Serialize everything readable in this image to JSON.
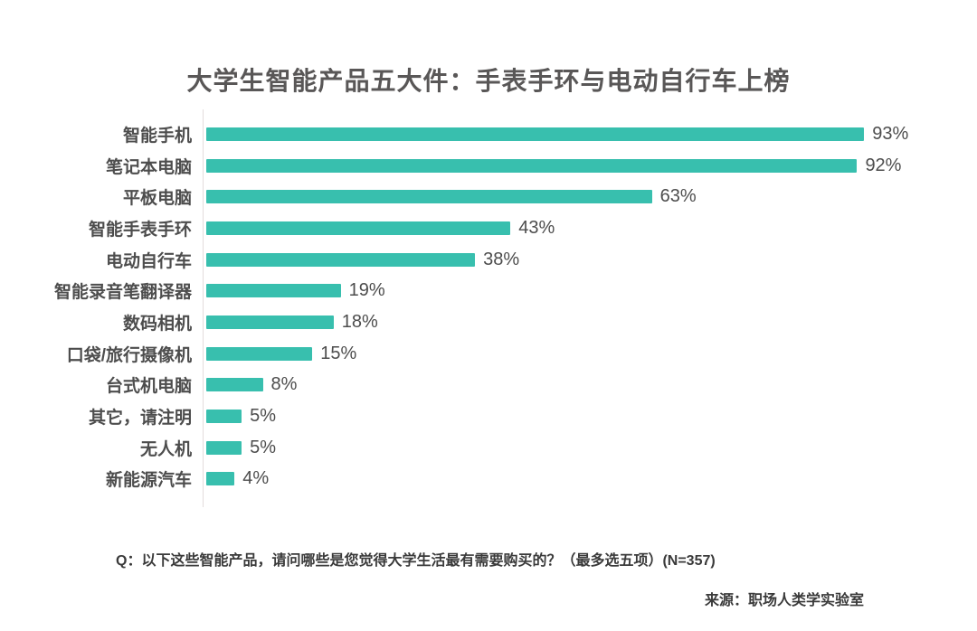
{
  "chart_data": {
    "type": "bar",
    "orientation": "horizontal",
    "title": "大学生智能产品五大件：手表手环与电动自行车上榜",
    "categories": [
      "智能手机",
      "笔记本电脑",
      "平板电脑",
      "智能手表手环",
      "电动自行车",
      "智能录音笔翻译器",
      "数码相机",
      "口袋/旅行摄像机",
      "台式机电脑",
      "其它，请注明",
      "无人机",
      "新能源汽车"
    ],
    "values": [
      93,
      92,
      63,
      43,
      38,
      19,
      18,
      15,
      8,
      5,
      5,
      4
    ],
    "value_labels": [
      "93%",
      "92%",
      "63%",
      "43%",
      "38%",
      "19%",
      "18%",
      "15%",
      "8%",
      "5%",
      "5%",
      "4%"
    ],
    "value_suffix": "%",
    "xlabel": "",
    "ylabel": "",
    "xlim": [
      0,
      100
    ],
    "grid": false,
    "legend": "none",
    "bar_color": "#38BFAE"
  },
  "footer": {
    "question": "Q：以下这些智能产品，请问哪些是您觉得大学生活最有需要购买的？（最多选五项）(N=357)",
    "source": "来源：职场人类学实验室"
  },
  "colors": {
    "bar": "#38BFAE",
    "title_text": "#595757",
    "label_text": "#4d4d4d",
    "footer_text": "#3a3a3a",
    "axis_line": "#e3dddd",
    "background": "#ffffff"
  }
}
